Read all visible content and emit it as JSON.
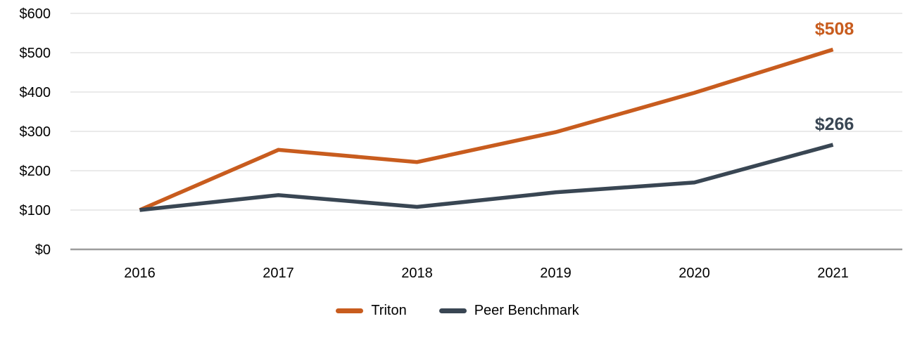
{
  "chart_data": {
    "type": "line",
    "title": "",
    "categories": [
      "2016",
      "2017",
      "2018",
      "2019",
      "2020",
      "2021"
    ],
    "series": [
      {
        "name": "Triton",
        "color": "#C85C1E",
        "values": [
          100,
          253,
          222,
          298,
          398,
          508
        ],
        "end_label": "$508"
      },
      {
        "name": "Peer Benchmark",
        "color": "#394653",
        "values": [
          100,
          138,
          108,
          145,
          170,
          266
        ],
        "end_label": "$266"
      }
    ],
    "y_ticks": [
      "$0",
      "$100",
      "$200",
      "$300",
      "$400",
      "$500",
      "$600"
    ],
    "ylim": [
      0,
      600
    ],
    "y_tick_step": 100,
    "grid": "horizontal",
    "grid_color": "#E7E7E7",
    "axis_color": "#9C9C9C",
    "legend_position": "bottom"
  }
}
